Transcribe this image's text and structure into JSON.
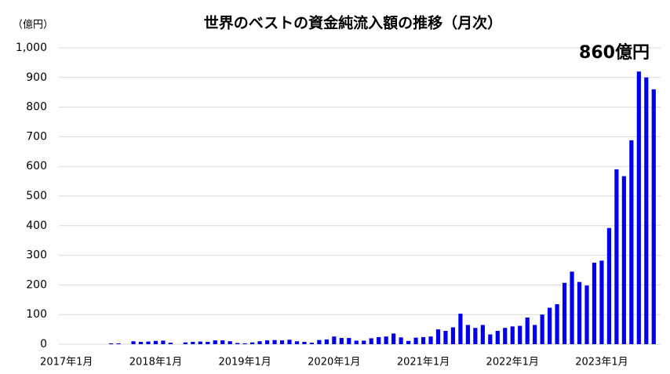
{
  "chart_data": {
    "type": "bar",
    "title": "世界のベストの資金純流入額の推移（月次）",
    "y_unit": "（億円）",
    "annotation": "860億円",
    "color": "#0000ee",
    "annotation_color": "#0000ee",
    "grid": true,
    "categories": [
      "2017年1月",
      null,
      null,
      null,
      null,
      null,
      null,
      null,
      null,
      null,
      null,
      null,
      "2018年1月",
      null,
      null,
      null,
      null,
      null,
      null,
      null,
      null,
      null,
      null,
      null,
      "2019年1月",
      null,
      null,
      null,
      null,
      null,
      null,
      null,
      null,
      null,
      null,
      null,
      "2020年1月",
      null,
      null,
      null,
      null,
      null,
      null,
      null,
      null,
      null,
      null,
      null,
      "2021年1月",
      null,
      null,
      null,
      null,
      null,
      null,
      null,
      null,
      null,
      null,
      null,
      "2022年1月",
      null,
      null,
      null,
      null,
      null,
      null,
      null,
      null,
      null,
      null,
      null,
      "2023年1月",
      null,
      null,
      null,
      null,
      null,
      null,
      null
    ],
    "values": [
      0,
      0,
      0,
      0,
      0,
      0,
      3,
      3,
      0,
      10,
      8,
      9,
      11,
      12,
      5,
      0,
      6,
      8,
      9,
      8,
      13,
      13,
      10,
      4,
      3,
      6,
      10,
      13,
      14,
      13,
      15,
      10,
      8,
      5,
      14,
      16,
      26,
      21,
      21,
      12,
      12,
      20,
      24,
      26,
      36,
      23,
      11,
      22,
      24,
      26,
      50,
      45,
      57,
      103,
      65,
      55,
      65,
      33,
      45,
      55,
      60,
      62,
      90,
      65,
      100,
      123,
      135,
      207,
      245,
      210,
      198,
      275,
      282,
      392,
      590,
      567,
      688,
      920,
      900,
      860
    ],
    "ylim": [
      0,
      1000
    ],
    "yticks": [
      0,
      100,
      200,
      300,
      400,
      500,
      600,
      700,
      800,
      900,
      {
        "value": 1000,
        "label": "1,000"
      }
    ]
  }
}
